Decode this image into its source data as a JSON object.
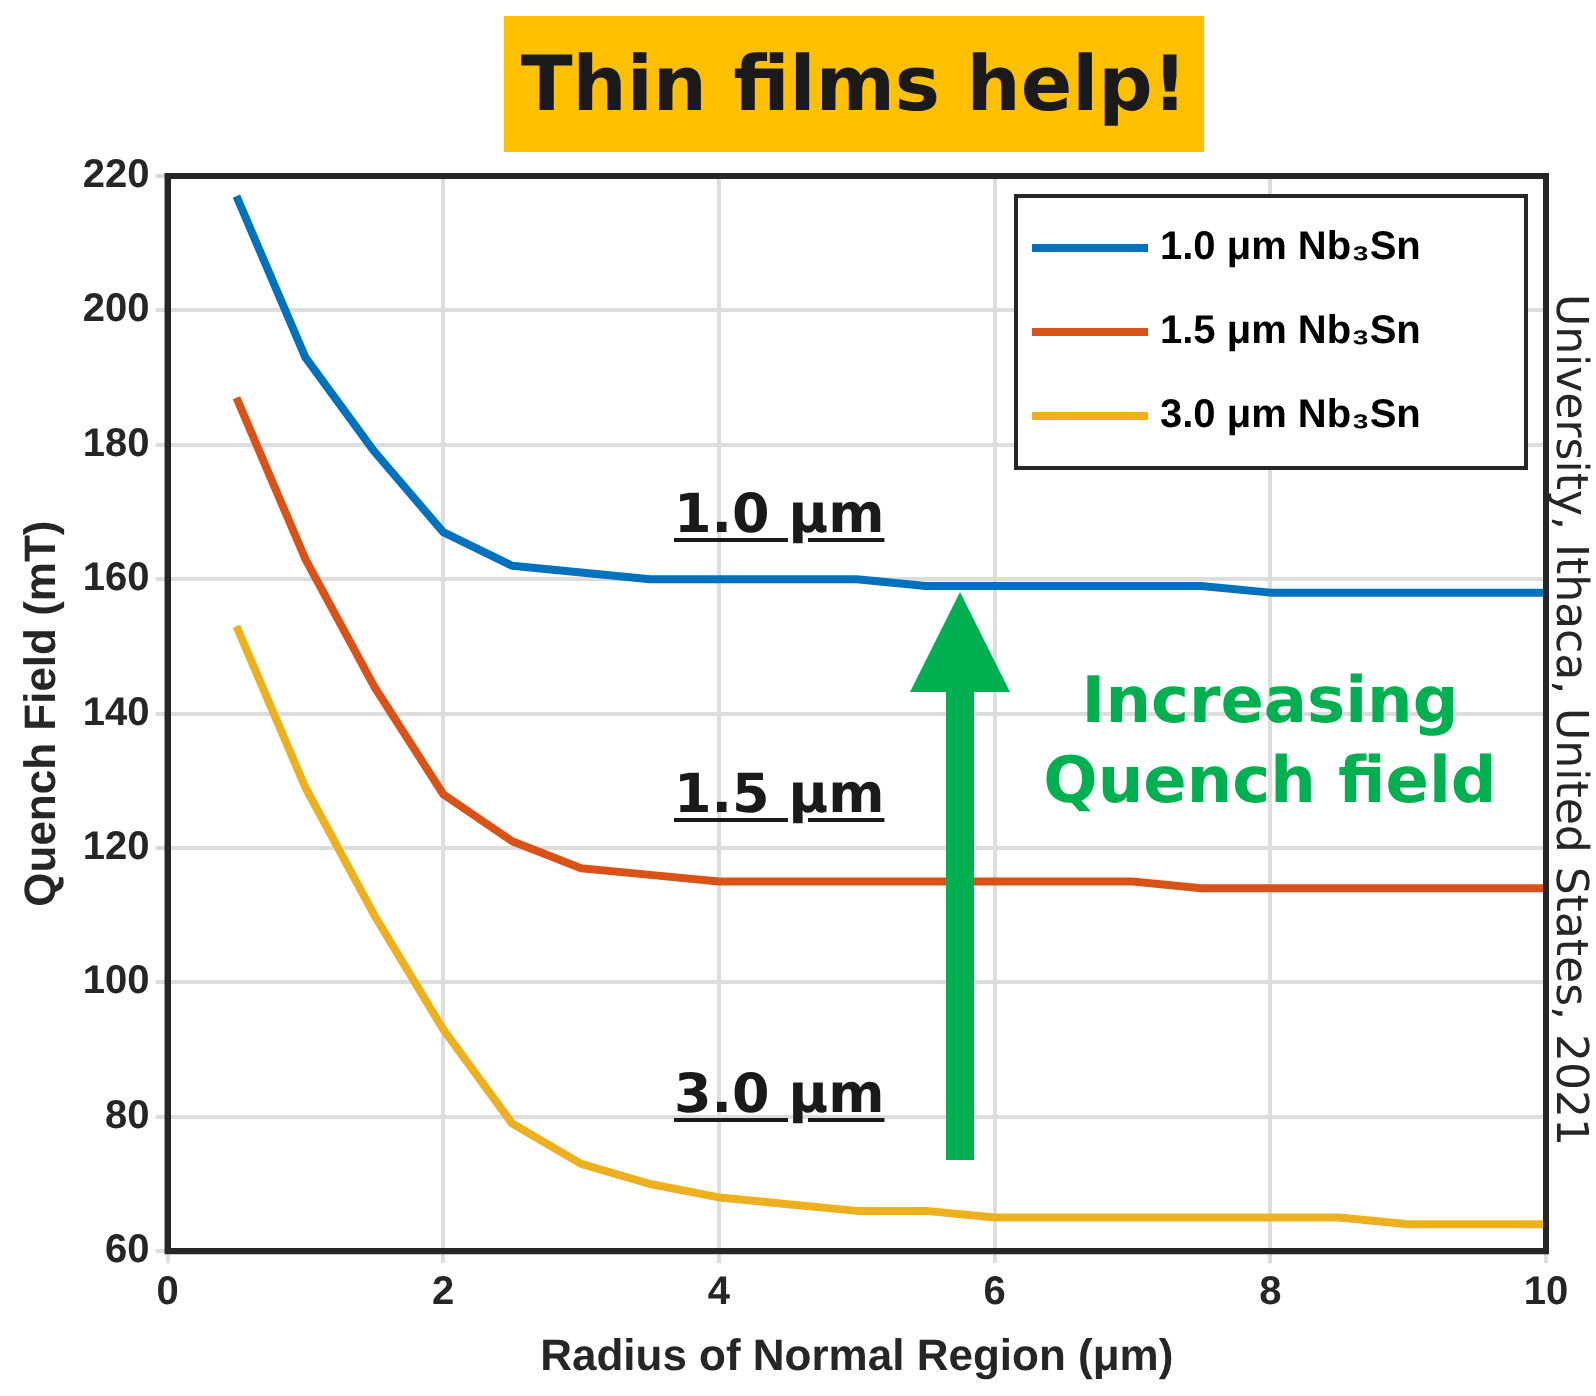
{
  "chart_data": {
    "type": "line",
    "xlabel": "Radius of Normal Region (μm)",
    "ylabel": "Quench Field (mT)",
    "xlim": [
      0,
      10
    ],
    "xticks": [
      0,
      2,
      4,
      6,
      8,
      10
    ],
    "ylim": [
      60,
      220
    ],
    "yticks": [
      60,
      80,
      100,
      120,
      140,
      160,
      180,
      200,
      220
    ],
    "grid": true,
    "legend": "top right",
    "marker": "none",
    "line_style": "solid",
    "x": [
      0.5,
      1,
      1.5,
      2,
      2.5,
      3,
      3.5,
      4,
      4.5,
      5,
      5.5,
      6,
      6.5,
      7,
      7.5,
      8,
      8.5,
      9,
      9.5,
      10
    ],
    "series": [
      {
        "name": "1.0 μm Nb₃Sn",
        "color": "#0072bd",
        "values": [
          217,
          193,
          179,
          167,
          162,
          161,
          160,
          160,
          160,
          160,
          159,
          159,
          159,
          159,
          159,
          158,
          158,
          158,
          158,
          158
        ]
      },
      {
        "name": "1.5 μm Nb₃Sn",
        "color": "#d95319",
        "values": [
          187,
          163,
          144,
          128,
          121,
          117,
          116,
          115,
          115,
          115,
          115,
          115,
          115,
          115,
          114,
          114,
          114,
          114,
          114,
          114
        ]
      },
      {
        "name": "3.0 μm Nb₃Sn",
        "color": "#edb120",
        "values": [
          153,
          129,
          110,
          93,
          79,
          73,
          70,
          68,
          67,
          66,
          66,
          65,
          65,
          65,
          65,
          65,
          65,
          64,
          64,
          64
        ]
      }
    ],
    "annotations": [
      "Thin films help!",
      "1.0 μm",
      "1.5 μm",
      "3.0 μm",
      "Increasing Quench field",
      "University, Ithaca, United States, 2021"
    ]
  }
}
